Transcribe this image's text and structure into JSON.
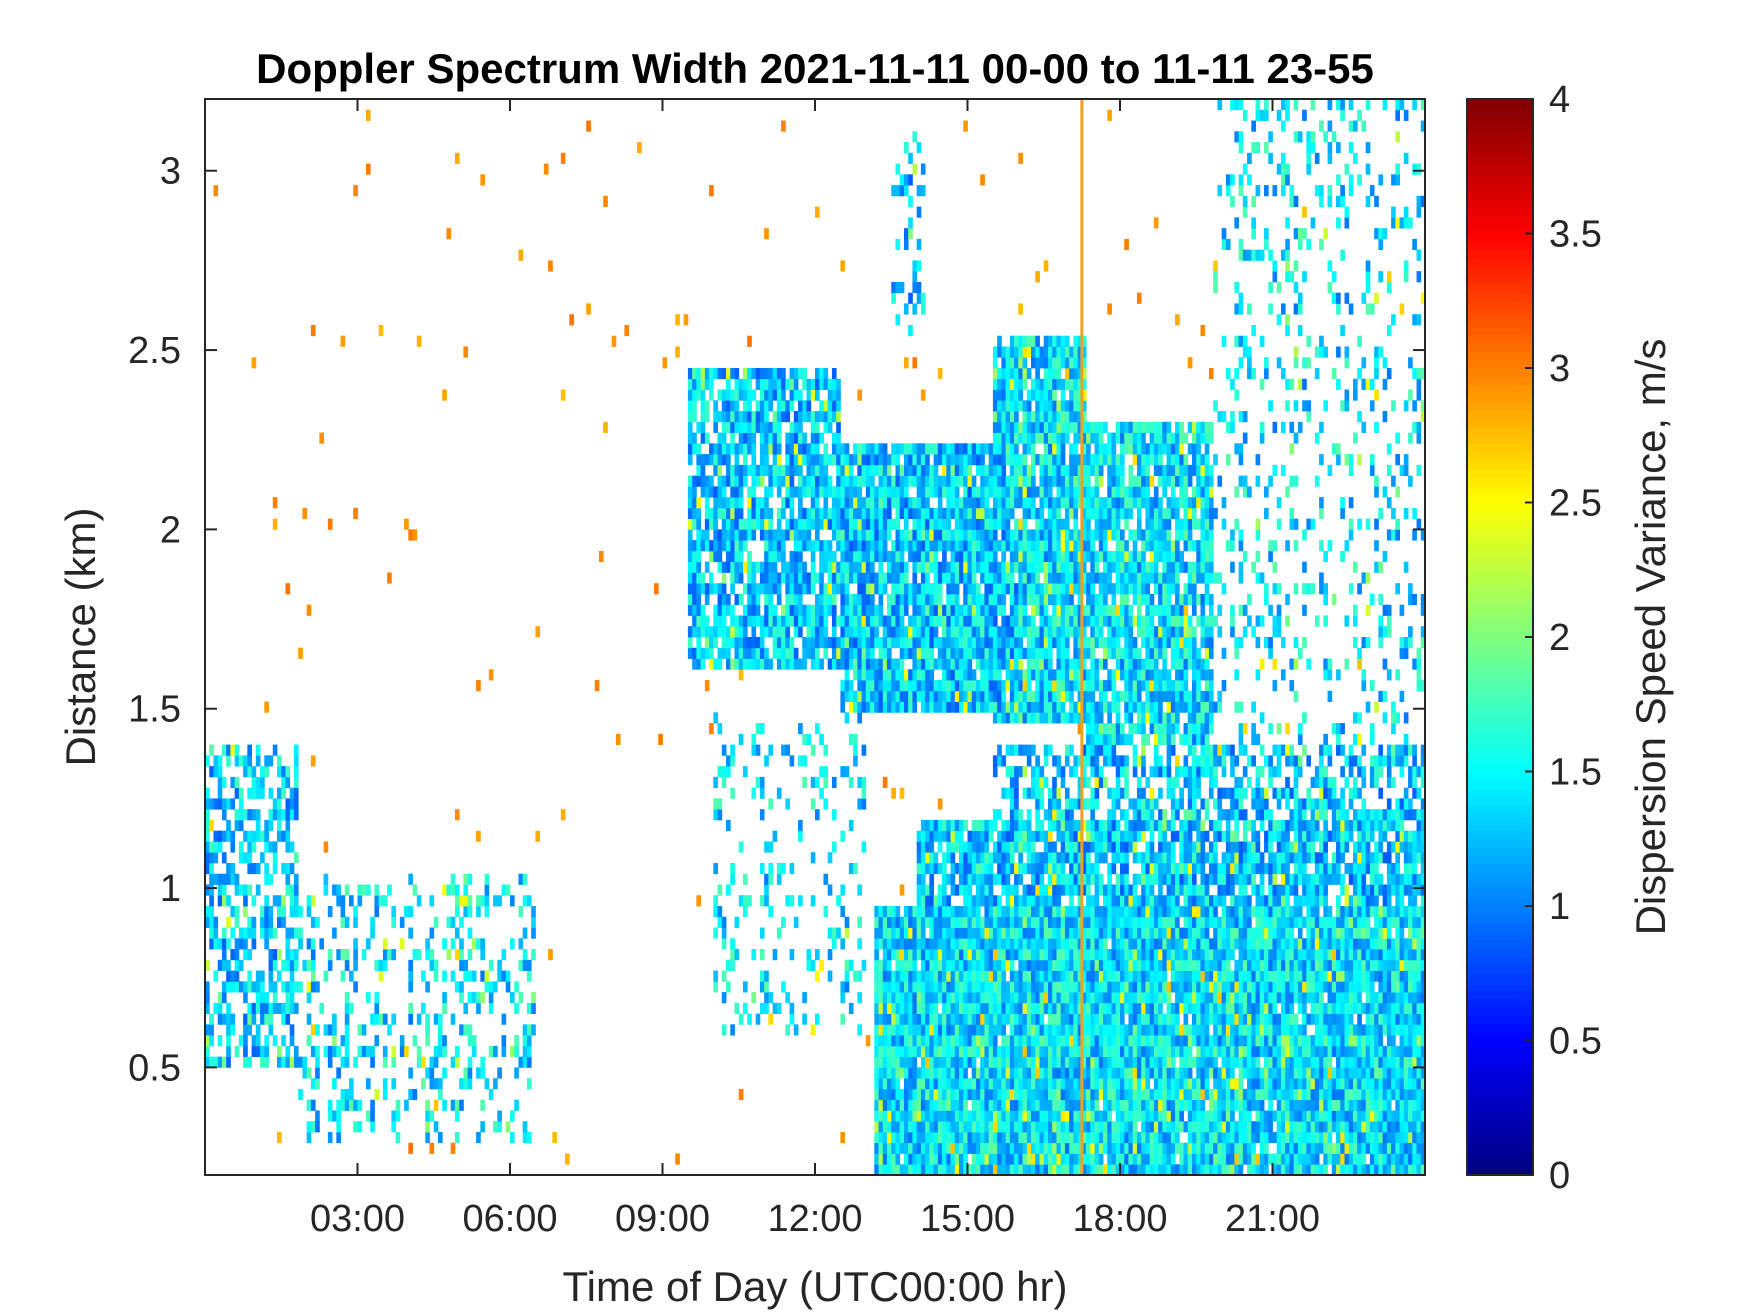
{
  "chart_data": {
    "type": "heatmap",
    "title": "Doppler Spectrum Width 2021-11-11 00-00 to 11-11 23-55",
    "xlabel": "Time of Day (UTC00:00 hr)",
    "ylabel": "Distance (km)",
    "colorbar_label": "Dispersion Speed Variance, m/s",
    "colormap": "jet",
    "colors": {
      "dominant_fill": "#22c8ee",
      "marker_line": "#f0a020",
      "axis": "#262626"
    },
    "xlim_hours": [
      0,
      24
    ],
    "ylim_km": [
      0.2,
      3.2
    ],
    "clim": [
      0,
      4
    ],
    "grid": false,
    "x_ticks": [
      {
        "value": 3,
        "label": "03:00"
      },
      {
        "value": 6,
        "label": "06:00"
      },
      {
        "value": 9,
        "label": "09:00"
      },
      {
        "value": 12,
        "label": "12:00"
      },
      {
        "value": 15,
        "label": "15:00"
      },
      {
        "value": 18,
        "label": "18:00"
      },
      {
        "value": 21,
        "label": "21:00"
      }
    ],
    "y_ticks": [
      {
        "value": 0.5,
        "label": "0.5"
      },
      {
        "value": 1,
        "label": "1"
      },
      {
        "value": 1.5,
        "label": "1.5"
      },
      {
        "value": 2,
        "label": "2"
      },
      {
        "value": 2.5,
        "label": "2.5"
      },
      {
        "value": 3,
        "label": "3"
      }
    ],
    "colorbar_ticks": [
      {
        "value": 0,
        "label": "0"
      },
      {
        "value": 0.5,
        "label": "0.5"
      },
      {
        "value": 1,
        "label": "1"
      },
      {
        "value": 1.5,
        "label": "1.5"
      },
      {
        "value": 2,
        "label": "2"
      },
      {
        "value": 2.5,
        "label": "2.5"
      },
      {
        "value": 3,
        "label": "3"
      },
      {
        "value": 3.5,
        "label": "3.5"
      },
      {
        "value": 4,
        "label": "4"
      }
    ],
    "vertical_marker_hour": 17.25,
    "regions": [
      {
        "name": "low-layer-main",
        "t0": 13.2,
        "t1": 24,
        "z0": 0.2,
        "z1": 0.95,
        "value": 1.4,
        "density": 0.97
      },
      {
        "name": "low-layer-mid",
        "t0": 14.0,
        "t1": 24,
        "z0": 0.95,
        "z1": 1.2,
        "value": 1.3,
        "density": 0.85
      },
      {
        "name": "low-layer-upper",
        "t0": 15.5,
        "t1": 24,
        "z0": 1.2,
        "z1": 1.4,
        "value": 1.3,
        "density": 0.6
      },
      {
        "name": "low-layer-green-band",
        "t0": 19.5,
        "t1": 24,
        "z0": 1.0,
        "z1": 1.25,
        "value": 1.9,
        "density": 0.4
      },
      {
        "name": "early-low-layer",
        "t0": 0.0,
        "t1": 1.8,
        "z0": 0.5,
        "z1": 1.4,
        "value": 1.3,
        "density": 0.55
      },
      {
        "name": "early-scatter",
        "t0": 1.8,
        "t1": 6.5,
        "z0": 0.3,
        "z1": 1.05,
        "value": 1.4,
        "density": 0.3
      },
      {
        "name": "morning-scatter",
        "t0": 10.0,
        "t1": 13.0,
        "z0": 0.6,
        "z1": 1.5,
        "value": 1.4,
        "density": 0.2
      },
      {
        "name": "cloud-deck-west",
        "t0": 9.5,
        "t1": 12.5,
        "z0": 1.6,
        "z1": 2.45,
        "value": 1.3,
        "density": 0.82
      },
      {
        "name": "cloud-deck-core",
        "t0": 12.5,
        "t1": 16.0,
        "z0": 1.5,
        "z1": 2.25,
        "value": 1.3,
        "density": 0.93
      },
      {
        "name": "cloud-deck-top",
        "t0": 15.5,
        "t1": 17.3,
        "z0": 1.45,
        "z1": 2.55,
        "value": 1.4,
        "density": 0.93
      },
      {
        "name": "cloud-deck-east",
        "t0": 17.3,
        "t1": 19.8,
        "z0": 1.4,
        "z1": 2.3,
        "value": 1.4,
        "density": 0.85
      },
      {
        "name": "late-columns",
        "t0": 19.8,
        "t1": 24,
        "z0": 1.3,
        "z1": 3.2,
        "value": 1.4,
        "density": 0.2
      },
      {
        "name": "upper-streak",
        "t0": 13.5,
        "t1": 14.2,
        "z0": 2.55,
        "z1": 3.1,
        "value": 1.3,
        "density": 0.3
      },
      {
        "name": "sparse-noise",
        "t0": 0.0,
        "t1": 24,
        "z0": 0.2,
        "z1": 3.2,
        "value": 2.9,
        "density": 0.008
      }
    ]
  }
}
